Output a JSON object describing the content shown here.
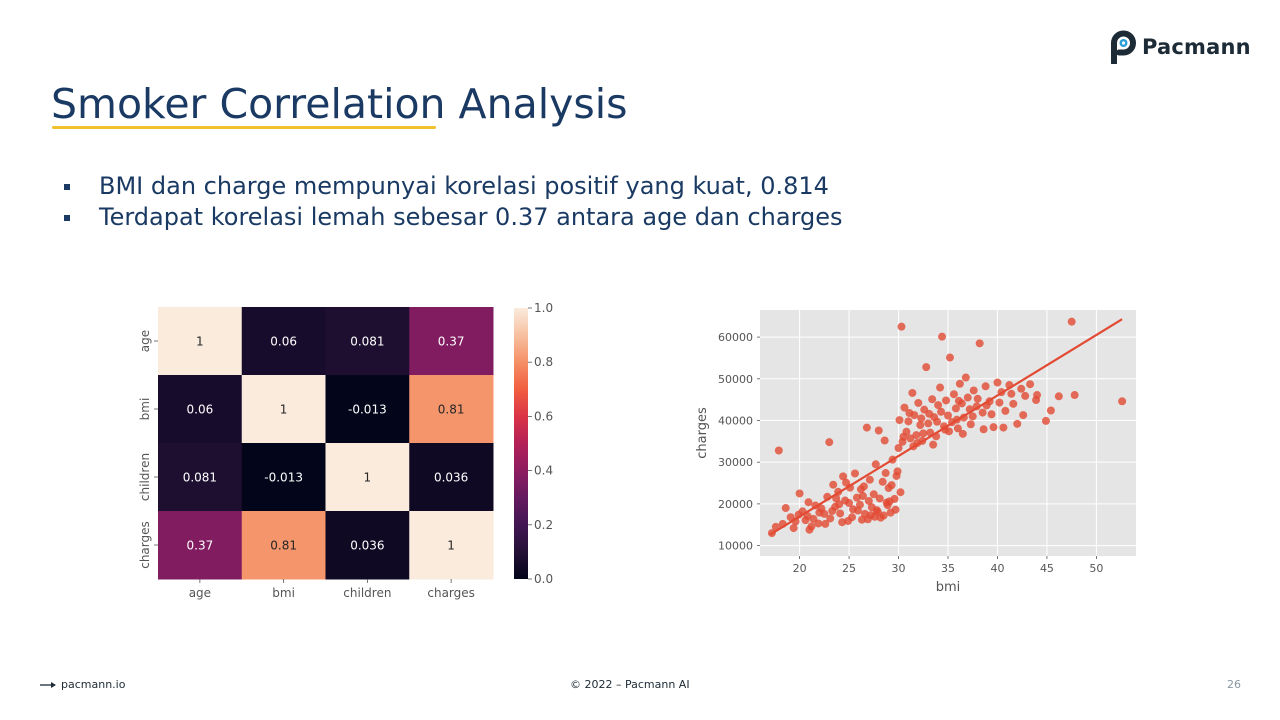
{
  "brand": {
    "name": "Pacmann",
    "icon": "pacmann-logo-icon"
  },
  "slide": {
    "title": "Smoker Correlation Analysis",
    "bullets": [
      "BMI dan charge mempunyai korelasi positif yang kuat, 0.814",
      "Terdapat korelasi lemah sebesar 0.37 antara age dan charges"
    ]
  },
  "footer": {
    "link": "pacmann.io",
    "link_icon": "arrow-right-icon",
    "copyright": "© 2022 – Pacmann AI",
    "page_number": "26"
  },
  "colors": {
    "title": "#1a3a63",
    "accent": "#f2c12e",
    "scatter": "#e24a33"
  },
  "chart_data": [
    {
      "type": "heatmap",
      "x_labels": [
        "age",
        "bmi",
        "children",
        "charges"
      ],
      "y_labels": [
        "age",
        "bmi",
        "children",
        "charges"
      ],
      "values": [
        [
          1,
          0.06,
          0.081,
          0.37
        ],
        [
          0.06,
          1,
          -0.013,
          0.81
        ],
        [
          0.081,
          -0.013,
          1,
          0.036
        ],
        [
          0.37,
          0.81,
          0.036,
          1
        ]
      ],
      "cell_labels": [
        [
          "1",
          "0.06",
          "0.081",
          "0.37"
        ],
        [
          "0.06",
          "1",
          "-0.013",
          "0.81"
        ],
        [
          "0.081",
          "-0.013",
          "1",
          "0.036"
        ],
        [
          "0.37",
          "0.81",
          "0.036",
          "1"
        ]
      ],
      "colorbar": {
        "range": [
          0,
          1
        ],
        "ticks": [
          "0.0",
          "0.2",
          "0.4",
          "0.6",
          "0.8",
          "1.0"
        ]
      }
    },
    {
      "type": "scatter",
      "xlabel": "bmi",
      "ylabel": "charges",
      "xlim": [
        16,
        54
      ],
      "ylim": [
        7500,
        66500
      ],
      "xticks": [
        "20",
        "25",
        "30",
        "35",
        "40",
        "45",
        "50"
      ],
      "yticks": [
        "10000",
        "20000",
        "30000",
        "40000",
        "50000",
        "60000"
      ],
      "regression": {
        "x": [
          17,
          52.6
        ],
        "y": [
          12600,
          64300
        ]
      },
      "points": [
        [
          17.2,
          13000
        ],
        [
          17.6,
          14500
        ],
        [
          17.9,
          32800
        ],
        [
          18.3,
          15200
        ],
        [
          18.6,
          19000
        ],
        [
          19.1,
          16800
        ],
        [
          19.6,
          15800
        ],
        [
          19.9,
          17400
        ],
        [
          20.0,
          22500
        ],
        [
          20.3,
          18200
        ],
        [
          20.6,
          16100
        ],
        [
          20.9,
          20400
        ],
        [
          21.2,
          14600
        ],
        [
          21.6,
          19600
        ],
        [
          21.9,
          15300
        ],
        [
          22.2,
          18900
        ],
        [
          22.5,
          17600
        ],
        [
          22.8,
          21700
        ],
        [
          23.0,
          34800
        ],
        [
          23.1,
          16500
        ],
        [
          23.4,
          24600
        ],
        [
          23.6,
          19300
        ],
        [
          23.9,
          22900
        ],
        [
          24.1,
          17700
        ],
        [
          24.4,
          26600
        ],
        [
          24.6,
          20800
        ],
        [
          24.9,
          15900
        ],
        [
          25.1,
          23900
        ],
        [
          25.4,
          18700
        ],
        [
          25.6,
          27300
        ],
        [
          25.8,
          21500
        ],
        [
          26.1,
          19800
        ],
        [
          26.3,
          16200
        ],
        [
          26.5,
          24200
        ],
        [
          26.8,
          38300
        ],
        [
          27.0,
          20700
        ],
        [
          27.2,
          17300
        ],
        [
          27.5,
          22300
        ],
        [
          27.7,
          29500
        ],
        [
          27.9,
          18100
        ],
        [
          28.0,
          37600
        ],
        [
          28.2,
          16700
        ],
        [
          28.4,
          25300
        ],
        [
          28.6,
          35200
        ],
        [
          28.8,
          20300
        ],
        [
          29.0,
          23800
        ],
        [
          29.2,
          17900
        ],
        [
          29.4,
          30600
        ],
        [
          29.6,
          21200
        ],
        [
          29.8,
          26700
        ],
        [
          30.0,
          33400
        ],
        [
          30.1,
          40100
        ],
        [
          30.3,
          62500
        ],
        [
          30.4,
          34900
        ],
        [
          30.6,
          43100
        ],
        [
          30.8,
          37300
        ],
        [
          31.0,
          39800
        ],
        [
          31.2,
          35700
        ],
        [
          31.4,
          46600
        ],
        [
          31.6,
          41300
        ],
        [
          31.8,
          36500
        ],
        [
          32.0,
          44200
        ],
        [
          32.2,
          38900
        ],
        [
          32.4,
          35100
        ],
        [
          32.6,
          42600
        ],
        [
          32.8,
          52800
        ],
        [
          33.0,
          39300
        ],
        [
          33.2,
          37100
        ],
        [
          33.4,
          45100
        ],
        [
          33.6,
          40800
        ],
        [
          33.8,
          36200
        ],
        [
          34.0,
          43700
        ],
        [
          34.2,
          47900
        ],
        [
          34.4,
          60100
        ],
        [
          34.6,
          38600
        ],
        [
          34.8,
          44800
        ],
        [
          35.0,
          41200
        ],
        [
          35.2,
          55100
        ],
        [
          35.4,
          39600
        ],
        [
          35.6,
          46300
        ],
        [
          35.8,
          42900
        ],
        [
          36.0,
          38100
        ],
        [
          36.2,
          48800
        ],
        [
          36.4,
          44100
        ],
        [
          36.6,
          40700
        ],
        [
          36.8,
          50300
        ],
        [
          37.0,
          45500
        ],
        [
          37.3,
          39100
        ],
        [
          37.6,
          47200
        ],
        [
          37.9,
          43400
        ],
        [
          38.2,
          58500
        ],
        [
          38.5,
          41900
        ],
        [
          38.8,
          48200
        ],
        [
          39.2,
          44600
        ],
        [
          39.6,
          38400
        ],
        [
          40.0,
          49100
        ],
        [
          40.4,
          46800
        ],
        [
          40.8,
          42300
        ],
        [
          41.2,
          48500
        ],
        [
          41.6,
          44000
        ],
        [
          42.0,
          39200
        ],
        [
          42.4,
          47600
        ],
        [
          42.8,
          45900
        ],
        [
          43.3,
          48700
        ],
        [
          44.0,
          46100
        ],
        [
          44.9,
          39900
        ],
        [
          45.4,
          42400
        ],
        [
          46.2,
          45800
        ],
        [
          47.5,
          63700
        ],
        [
          47.8,
          46100
        ],
        [
          52.6,
          44600
        ],
        [
          19.4,
          14200
        ],
        [
          20.8,
          17100
        ],
        [
          21.4,
          16400
        ],
        [
          22.6,
          15200
        ],
        [
          23.3,
          18300
        ],
        [
          24.0,
          19900
        ],
        [
          24.3,
          15600
        ],
        [
          25.0,
          20200
        ],
        [
          25.3,
          16800
        ],
        [
          25.9,
          18400
        ],
        [
          26.4,
          21900
        ],
        [
          26.9,
          16300
        ],
        [
          27.3,
          19200
        ],
        [
          27.6,
          16900
        ],
        [
          28.1,
          21300
        ],
        [
          28.5,
          17200
        ],
        [
          28.9,
          19700
        ],
        [
          29.3,
          24500
        ],
        [
          29.7,
          18600
        ],
        [
          30.2,
          22800
        ],
        [
          23.7,
          21300
        ],
        [
          24.7,
          25100
        ],
        [
          26.2,
          23500
        ],
        [
          27.1,
          25800
        ],
        [
          28.7,
          27400
        ],
        [
          30.5,
          36100
        ],
        [
          31.1,
          41800
        ],
        [
          31.9,
          34600
        ],
        [
          32.5,
          36900
        ],
        [
          33.1,
          41600
        ],
        [
          33.9,
          39700
        ],
        [
          34.3,
          42100
        ],
        [
          35.1,
          37400
        ],
        [
          35.9,
          40200
        ],
        [
          36.5,
          36800
        ],
        [
          37.2,
          42700
        ],
        [
          38.0,
          45200
        ],
        [
          38.6,
          37900
        ],
        [
          39.4,
          41500
        ],
        [
          40.6,
          38300
        ],
        [
          41.4,
          46400
        ],
        [
          42.6,
          41300
        ],
        [
          21.0,
          13800
        ],
        [
          22.0,
          17900
        ],
        [
          26.6,
          17600
        ],
        [
          27.8,
          18500
        ],
        [
          29.1,
          20600
        ],
        [
          29.9,
          27800
        ],
        [
          31.5,
          33800
        ],
        [
          32.3,
          40500
        ],
        [
          33.5,
          34200
        ],
        [
          34.7,
          37800
        ],
        [
          36.1,
          44700
        ],
        [
          37.5,
          41000
        ],
        [
          38.9,
          43600
        ],
        [
          40.2,
          44300
        ],
        [
          43.9,
          44900
        ]
      ]
    }
  ]
}
